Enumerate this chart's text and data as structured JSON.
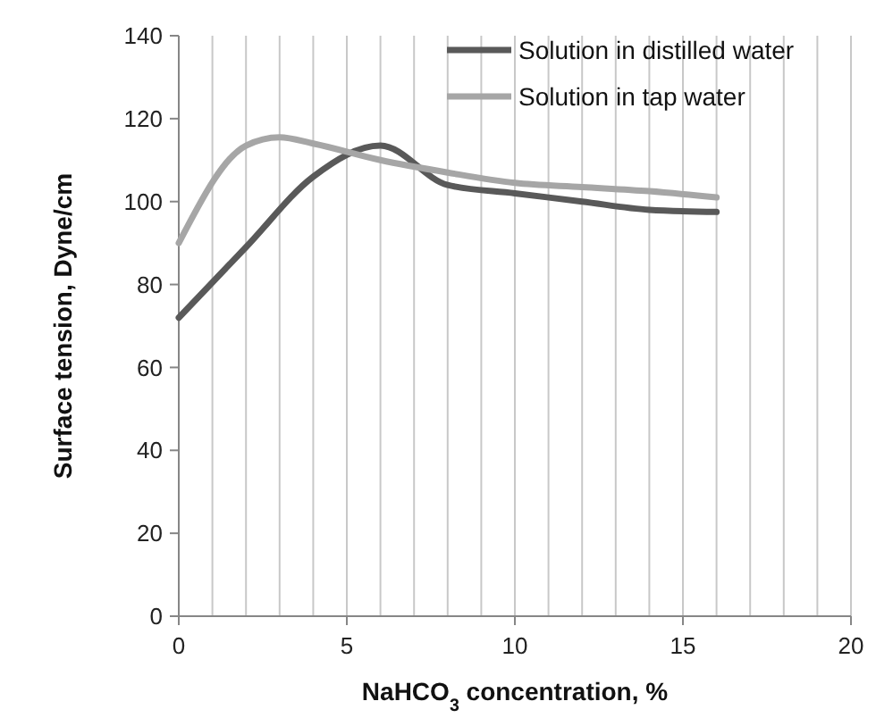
{
  "chart_data": {
    "type": "line",
    "xlabel": "NaHCO$_{3}$ concentration, %",
    "ylabel": "Surface tension, Dyne/cm",
    "xlim": [
      0,
      20
    ],
    "ylim": [
      0,
      140
    ],
    "xticks": [
      0,
      {
        "value": 1,
        "label": null
      },
      {
        "value": 2,
        "label": null
      },
      {
        "value": 3,
        "label": null
      },
      {
        "value": 4,
        "label": null
      },
      5,
      {
        "value": 6,
        "label": null
      },
      {
        "value": 7,
        "label": null
      },
      {
        "value": 8,
        "label": null
      },
      {
        "value": 9,
        "label": null
      },
      10,
      {
        "value": 11,
        "label": null
      },
      {
        "value": 12,
        "label": null
      },
      {
        "value": 13,
        "label": null
      },
      {
        "value": 14,
        "label": null
      },
      15,
      {
        "value": 16,
        "label": null
      },
      {
        "value": 17,
        "label": null
      },
      {
        "value": 18,
        "label": null
      },
      {
        "value": 19,
        "label": null
      },
      20
    ],
    "yticks": [
      0,
      20,
      40,
      60,
      80,
      100,
      120,
      140
    ],
    "grid": "x",
    "legend": "top right",
    "marker": "none",
    "line_style": "solid",
    "series": [
      {
        "name": "Solution in distilled water",
        "color": "#595959",
        "x": [
          0,
          2,
          4,
          6,
          8,
          10,
          12,
          14,
          16
        ],
        "values": [
          72,
          89,
          106,
          113.5,
          104,
          102,
          100,
          98,
          97.5
        ]
      },
      {
        "name": "Solution in tap water",
        "color": "#a6a6a6",
        "x": [
          0,
          2,
          3,
          4,
          6,
          8,
          10,
          12,
          14,
          16
        ],
        "values": [
          90,
          113.5,
          115.5,
          114,
          110,
          107,
          104.5,
          103.5,
          102.5,
          101
        ]
      }
    ]
  }
}
